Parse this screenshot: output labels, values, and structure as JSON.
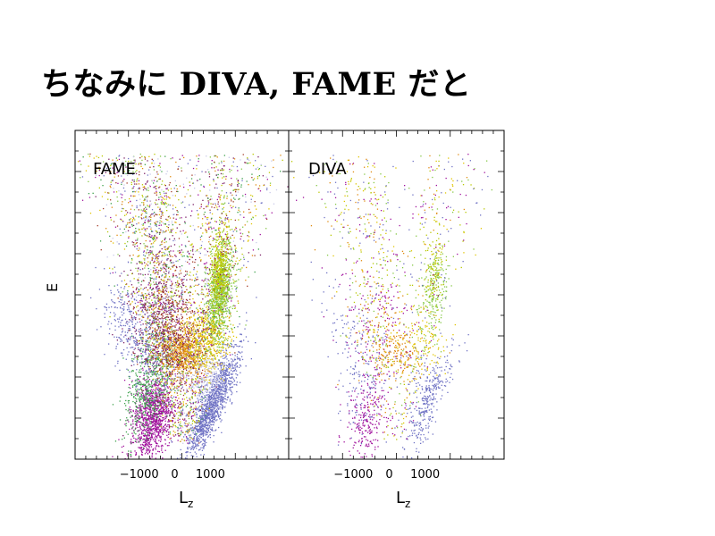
{
  "slide": {
    "title": "ちなみに DIVA, FAME だと"
  },
  "chart_data": [
    {
      "type": "scatter",
      "panel_label": "FAME",
      "xlabel": "L",
      "xlabel_sub": "z",
      "ylabel": "E",
      "xlim": [
        -2800,
        3200
      ],
      "xticks": [
        -1000,
        0,
        1000
      ],
      "xtick_labels": [
        "−1000",
        "0",
        "1000"
      ],
      "ylim": [
        0,
        1
      ],
      "ytick_labels_shown": false,
      "grid": false,
      "density": "high",
      "colors": [
        "#6f72c4",
        "#a0109c",
        "#b8c800",
        "#e0c400",
        "#e08a10",
        "#86c846",
        "#7a1f66",
        "#a33c2a",
        "#3ba04a",
        "#c8c8e8"
      ],
      "series": [
        {
          "color": "#6f72c4",
          "x": [
            500,
            1600
          ],
          "y": [
            0.06,
            0.25
          ]
        },
        {
          "color": "#a0109c",
          "x": [
            -900,
            -400
          ],
          "y": [
            0.05,
            0.22
          ]
        },
        {
          "color": "#86c846",
          "x": [
            1000,
            1500
          ],
          "y": [
            0.45,
            0.62
          ]
        },
        {
          "color": "#e08a10",
          "x": [
            -100,
            500
          ],
          "y": [
            0.28,
            0.38
          ]
        },
        {
          "color": "#e0c400",
          "x": [
            500,
            1200
          ],
          "y": [
            0.3,
            0.44
          ]
        }
      ]
    },
    {
      "type": "scatter",
      "panel_label": "DIVA",
      "xlabel": "L",
      "xlabel_sub": "z",
      "xlim": [
        -2800,
        3200
      ],
      "xticks": [
        -1000,
        0,
        1000
      ],
      "xtick_labels": [
        "−1000",
        "0",
        "1000"
      ],
      "ylim": [
        0,
        1
      ],
      "grid": false,
      "density": "low",
      "colors": [
        "#6f72c4",
        "#a0109c",
        "#b8c800",
        "#e0c400",
        "#e08a10",
        "#86c846"
      ],
      "series": [
        {
          "color": "#6f72c4",
          "x": [
            600,
            1400
          ],
          "y": [
            0.12,
            0.26
          ]
        },
        {
          "color": "#a0109c",
          "x": [
            -900,
            -300
          ],
          "y": [
            0.1,
            0.2
          ]
        },
        {
          "color": "#b8c800",
          "x": [
            800,
            1500
          ],
          "y": [
            0.4,
            0.6
          ]
        }
      ]
    }
  ]
}
